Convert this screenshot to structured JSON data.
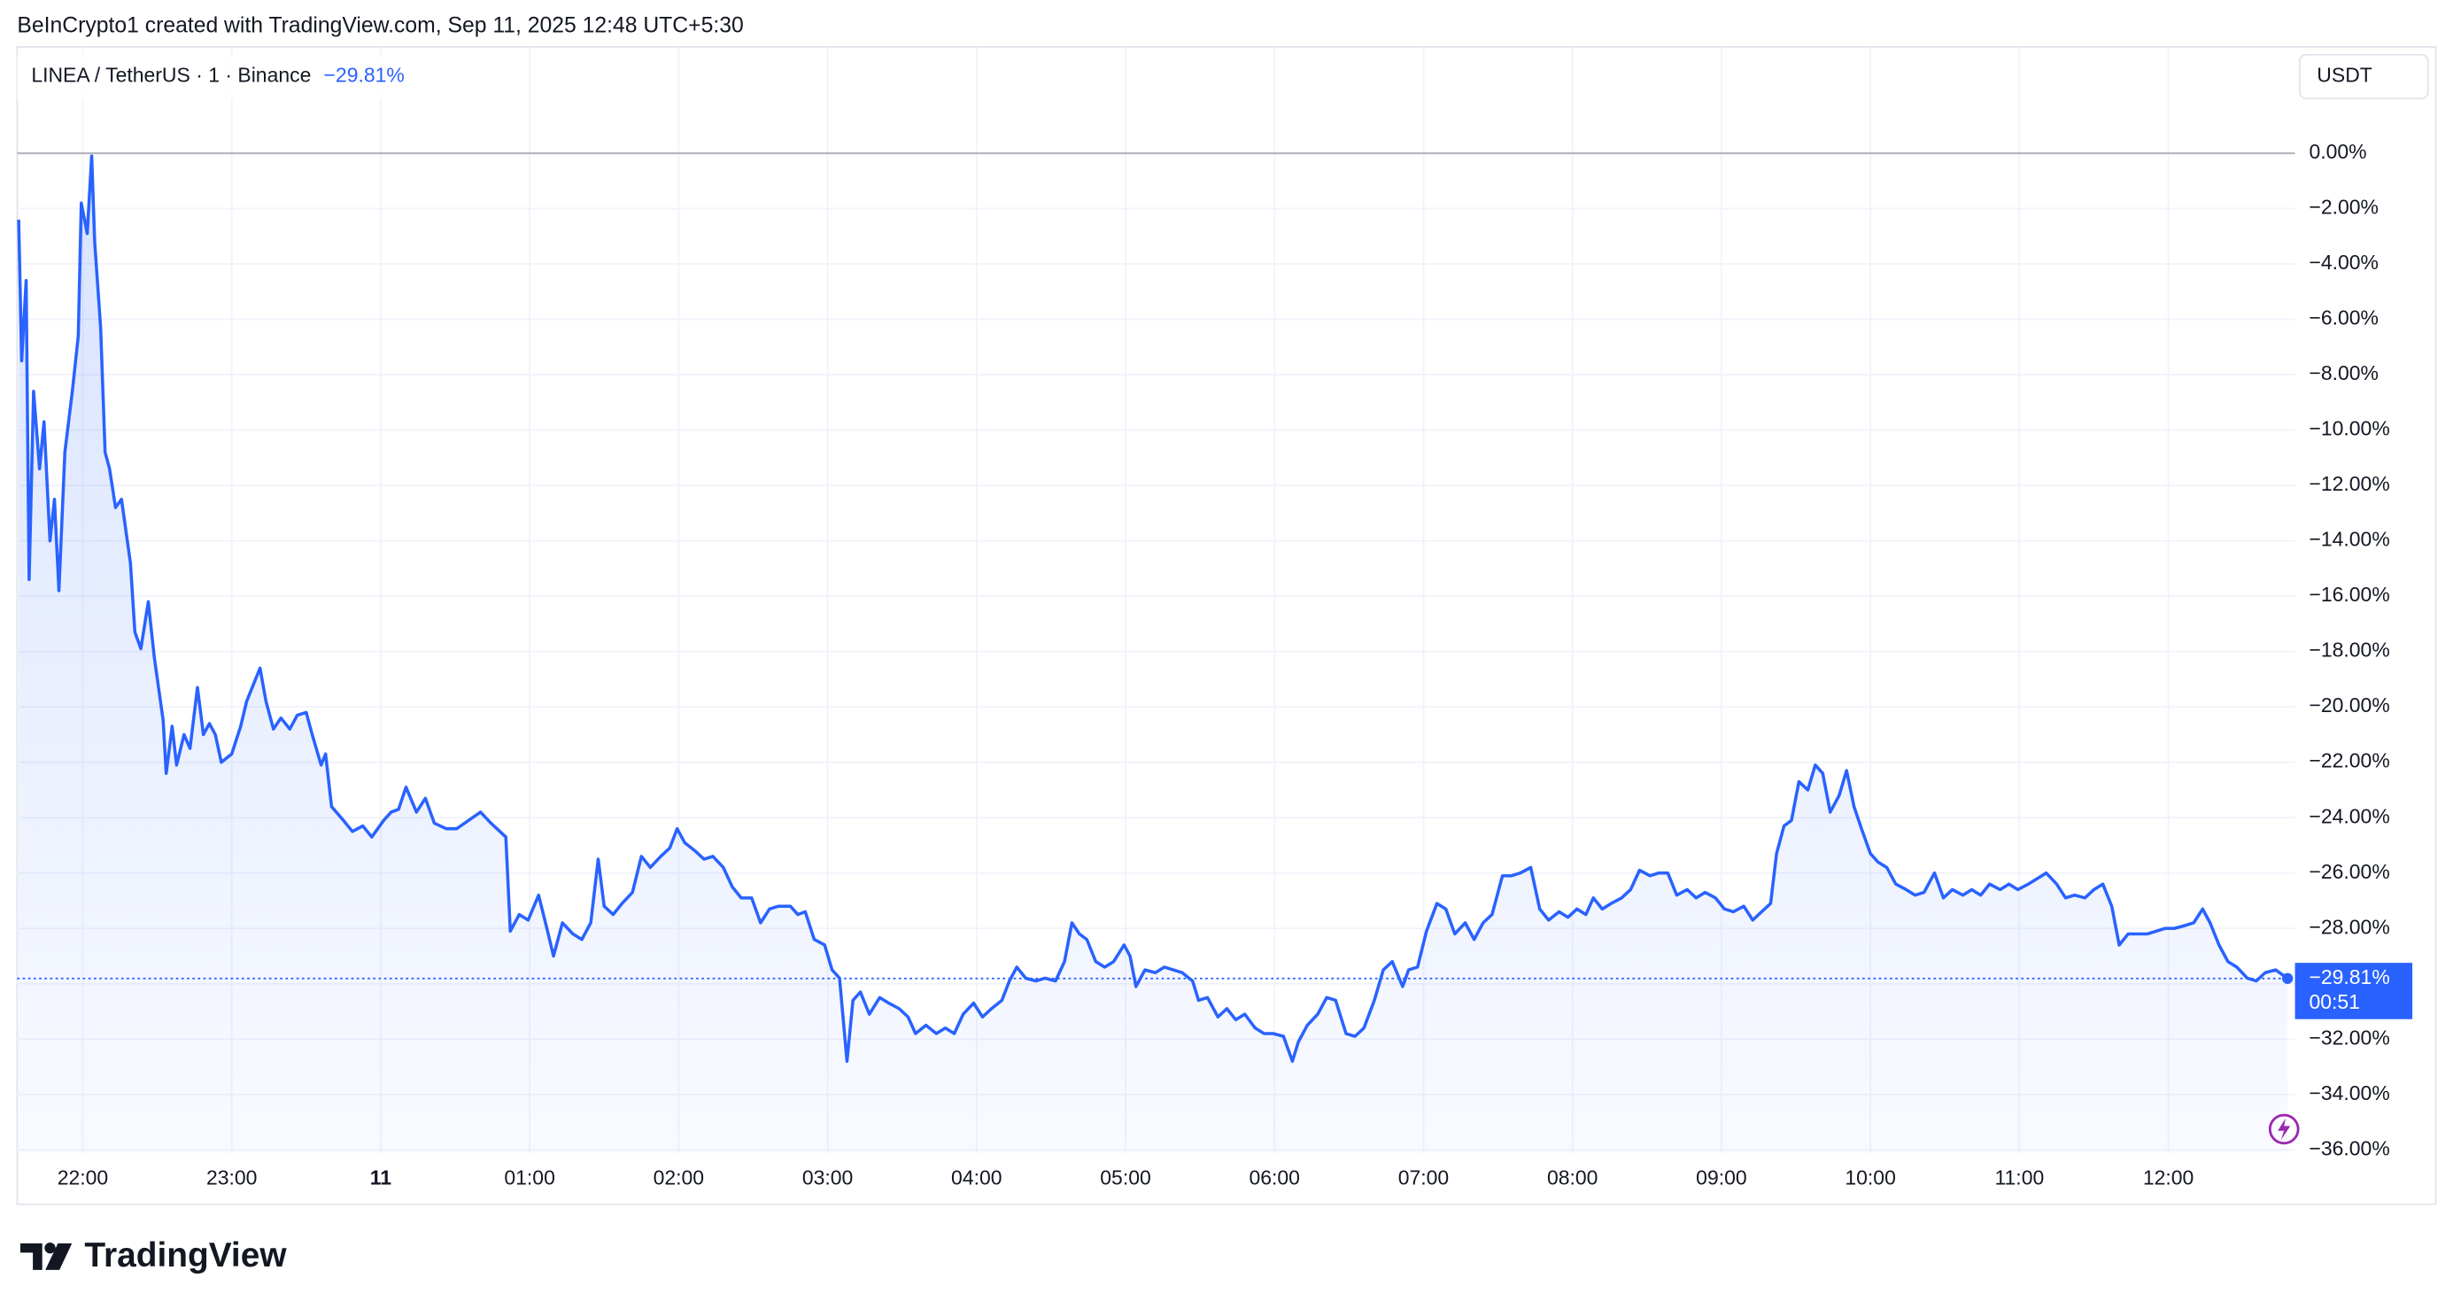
{
  "chart_data": {
    "type": "line",
    "credit": "BeInCrypto1 created with TradingView.com, Sep 11, 2025 12:48 UTC+5:30",
    "title": "LINEA / TetherUS · 1 · Binance",
    "change_label": "−29.81%",
    "currency": "USDT",
    "price_label": "−29.81%",
    "countdown": "00:51",
    "brand": "TradingView",
    "baseline": 0,
    "grid": true,
    "xlim": [
      21.56,
      36.85
    ],
    "ylim": [
      3.84,
      -36.1
    ],
    "xticks": [
      {
        "value": 22,
        "label": "22:00"
      },
      {
        "value": 23,
        "label": "23:00"
      },
      {
        "value": 24,
        "label": "11"
      },
      {
        "value": 25,
        "label": "01:00"
      },
      {
        "value": 26,
        "label": "02:00"
      },
      {
        "value": 27,
        "label": "03:00"
      },
      {
        "value": 28,
        "label": "04:00"
      },
      {
        "value": 29,
        "label": "05:00"
      },
      {
        "value": 30,
        "label": "06:00"
      },
      {
        "value": 31,
        "label": "07:00"
      },
      {
        "value": 32,
        "label": "08:00"
      },
      {
        "value": 33,
        "label": "09:00"
      },
      {
        "value": 34,
        "label": "10:00"
      },
      {
        "value": 35,
        "label": "11:00"
      },
      {
        "value": 36,
        "label": "12:00"
      }
    ],
    "yticks": [
      {
        "value": 0,
        "label": "0.00%"
      },
      {
        "value": -2,
        "label": "−2.00%"
      },
      {
        "value": -4,
        "label": "−4.00%"
      },
      {
        "value": -6,
        "label": "−6.00%"
      },
      {
        "value": -8,
        "label": "−8.00%"
      },
      {
        "value": -10,
        "label": "−10.00%"
      },
      {
        "value": -12,
        "label": "−12.00%"
      },
      {
        "value": -14,
        "label": "−14.00%"
      },
      {
        "value": -16,
        "label": "−16.00%"
      },
      {
        "value": -18,
        "label": "−18.00%"
      },
      {
        "value": -20,
        "label": "−20.00%"
      },
      {
        "value": -22,
        "label": "−22.00%"
      },
      {
        "value": -24,
        "label": "−24.00%"
      },
      {
        "value": -26,
        "label": "−26.00%"
      },
      {
        "value": -28,
        "label": "−28.00%"
      },
      {
        "value": -30,
        "label": "−30.00%"
      },
      {
        "value": -32,
        "label": "−32.00%"
      },
      {
        "value": -34,
        "label": "−34.00%"
      },
      {
        "value": -36,
        "label": "−36.00%"
      }
    ],
    "x": [
      21.57,
      21.59,
      21.62,
      21.64,
      21.67,
      21.71,
      21.74,
      21.78,
      21.81,
      21.84,
      21.88,
      21.93,
      21.97,
      21.99,
      22.03,
      22.06,
      22.08,
      22.12,
      22.15,
      22.18,
      22.22,
      22.26,
      22.32,
      22.35,
      22.39,
      22.44,
      22.48,
      22.54,
      22.56,
      22.6,
      22.63,
      22.68,
      22.72,
      22.77,
      22.81,
      22.85,
      22.89,
      22.93,
      23.0,
      23.06,
      23.1,
      23.16,
      23.19,
      23.23,
      23.28,
      23.33,
      23.39,
      23.44,
      23.5,
      23.54,
      23.6,
      23.63,
      23.67,
      23.75,
      23.81,
      23.88,
      23.94,
      24.02,
      24.07,
      24.12,
      24.17,
      24.24,
      24.3,
      24.36,
      24.44,
      24.51,
      24.59,
      24.67,
      24.74,
      24.8,
      24.84,
      24.87,
      24.93,
      24.99,
      25.06,
      25.12,
      25.16,
      25.22,
      25.29,
      25.35,
      25.41,
      25.46,
      25.5,
      25.56,
      25.62,
      25.69,
      25.75,
      25.81,
      25.88,
      25.94,
      25.99,
      26.04,
      26.11,
      26.17,
      26.23,
      26.3,
      26.36,
      26.42,
      26.49,
      26.55,
      26.61,
      26.67,
      26.75,
      26.8,
      26.85,
      26.91,
      26.98,
      27.03,
      27.08,
      27.13,
      27.17,
      27.22,
      27.28,
      27.35,
      27.41,
      27.48,
      27.54,
      27.59,
      27.66,
      27.73,
      27.79,
      27.85,
      27.91,
      27.98,
      28.04,
      28.1,
      28.17,
      28.22,
      28.27,
      28.33,
      28.4,
      28.46,
      28.53,
      28.59,
      28.64,
      28.69,
      28.74,
      28.8,
      28.86,
      28.92,
      28.99,
      29.03,
      29.07,
      29.13,
      29.2,
      29.26,
      29.32,
      29.38,
      29.45,
      29.49,
      29.55,
      29.62,
      29.68,
      29.74,
      29.8,
      29.87,
      29.93,
      29.99,
      30.06,
      30.12,
      30.16,
      30.22,
      30.29,
      30.35,
      30.41,
      30.48,
      30.54,
      30.6,
      30.67,
      30.73,
      30.79,
      30.86,
      30.9,
      30.96,
      31.02,
      31.09,
      31.15,
      31.21,
      31.28,
      31.34,
      31.4,
      31.46,
      31.53,
      31.59,
      31.65,
      31.72,
      31.78,
      31.84,
      31.91,
      31.97,
      32.03,
      32.09,
      32.14,
      32.2,
      32.26,
      32.33,
      32.39,
      32.45,
      32.52,
      32.58,
      32.64,
      32.7,
      32.77,
      32.83,
      32.89,
      32.96,
      33.02,
      33.08,
      33.15,
      33.21,
      33.27,
      33.33,
      33.37,
      33.42,
      33.47,
      33.52,
      33.58,
      33.63,
      33.68,
      33.73,
      33.79,
      33.84,
      33.89,
      33.94,
      34.0,
      34.05,
      34.11,
      34.17,
      34.24,
      34.3,
      34.36,
      34.43,
      34.49,
      34.55,
      34.62,
      34.68,
      34.74,
      34.8,
      34.87,
      34.93,
      34.99,
      35.06,
      35.12,
      35.18,
      35.25,
      35.31,
      35.37,
      35.44,
      35.5,
      35.56,
      35.62,
      35.67,
      35.73,
      35.79,
      35.86,
      35.92,
      35.98,
      36.04,
      36.11,
      36.17,
      36.23,
      36.28,
      36.34,
      36.4,
      36.46,
      36.53,
      36.59,
      36.65,
      36.72,
      36.8
    ],
    "series": [
      {
        "name": "LINEA / TetherUS",
        "color": "#2962ff",
        "values": [
          -2.4,
          -7.5,
          -4.6,
          -15.4,
          -8.6,
          -11.4,
          -9.7,
          -14,
          -12.5,
          -15.8,
          -10.8,
          -8.6,
          -6.6,
          -1.8,
          -2.9,
          -0.1,
          -3.2,
          -6.3,
          -10.8,
          -11.4,
          -12.8,
          -12.5,
          -14.8,
          -17.3,
          -17.9,
          -16.2,
          -18.2,
          -20.5,
          -22.4,
          -20.7,
          -22.1,
          -21,
          -21.5,
          -19.3,
          -21,
          -20.6,
          -21,
          -22,
          -21.7,
          -20.7,
          -19.8,
          -19,
          -18.6,
          -19.8,
          -20.8,
          -20.4,
          -20.8,
          -20.3,
          -20.2,
          -21,
          -22.1,
          -21.7,
          -23.6,
          -24.1,
          -24.5,
          -24.3,
          -24.7,
          -24.1,
          -23.8,
          -23.7,
          -22.9,
          -23.8,
          -23.3,
          -24.2,
          -24.4,
          -24.4,
          -24.1,
          -23.8,
          -24.2,
          -24.5,
          -24.7,
          -28.1,
          -27.5,
          -27.7,
          -26.8,
          -28.1,
          -29,
          -27.8,
          -28.2,
          -28.4,
          -27.8,
          -25.5,
          -27.2,
          -27.5,
          -27.1,
          -26.7,
          -25.4,
          -25.8,
          -25.4,
          -25.1,
          -24.4,
          -24.9,
          -25.2,
          -25.5,
          -25.4,
          -25.8,
          -26.5,
          -26.9,
          -26.9,
          -27.8,
          -27.3,
          -27.2,
          -27.2,
          -27.5,
          -27.4,
          -28.4,
          -28.6,
          -29.5,
          -29.8,
          -32.8,
          -30.6,
          -30.3,
          -31.1,
          -30.5,
          -30.7,
          -30.9,
          -31.2,
          -31.8,
          -31.5,
          -31.8,
          -31.6,
          -31.8,
          -31.1,
          -30.7,
          -31.2,
          -30.9,
          -30.6,
          -29.9,
          -29.4,
          -29.8,
          -29.9,
          -29.8,
          -29.9,
          -29.2,
          -27.8,
          -28.2,
          -28.4,
          -29.2,
          -29.4,
          -29.2,
          -28.6,
          -29,
          -30.1,
          -29.5,
          -29.6,
          -29.4,
          -29.5,
          -29.6,
          -29.9,
          -30.6,
          -30.5,
          -31.2,
          -30.9,
          -31.3,
          -31.1,
          -31.6,
          -31.8,
          -31.8,
          -31.9,
          -32.8,
          -32.1,
          -31.5,
          -31.1,
          -30.5,
          -30.6,
          -31.8,
          -31.9,
          -31.6,
          -30.6,
          -29.5,
          -29.2,
          -30.1,
          -29.5,
          -29.4,
          -28.1,
          -27.1,
          -27.3,
          -28.2,
          -27.8,
          -28.4,
          -27.8,
          -27.5,
          -26.1,
          -26.1,
          -26,
          -25.8,
          -27.3,
          -27.7,
          -27.4,
          -27.6,
          -27.3,
          -27.5,
          -26.9,
          -27.3,
          -27.1,
          -26.9,
          -26.6,
          -25.9,
          -26.1,
          -26,
          -26,
          -26.8,
          -26.6,
          -26.9,
          -26.7,
          -26.9,
          -27.3,
          -27.4,
          -27.2,
          -27.7,
          -27.4,
          -27.1,
          -25.3,
          -24.3,
          -24.1,
          -22.7,
          -23,
          -22.1,
          -22.4,
          -23.8,
          -23.2,
          -22.3,
          -23.6,
          -24.4,
          -25.3,
          -25.6,
          -25.8,
          -26.4,
          -26.6,
          -26.8,
          -26.7,
          -26,
          -26.9,
          -26.6,
          -26.8,
          -26.6,
          -26.8,
          -26.4,
          -26.6,
          -26.4,
          -26.6,
          -26.4,
          -26.2,
          -26,
          -26.4,
          -26.9,
          -26.8,
          -26.9,
          -26.6,
          -26.4,
          -27.2,
          -28.6,
          -28.2,
          -28.2,
          -28.2,
          -28.1,
          -28,
          -28,
          -27.9,
          -27.8,
          -27.3,
          -27.8,
          -28.6,
          -29.2,
          -29.4,
          -29.8,
          -29.9,
          -29.6,
          -29.5,
          -29.81
        ]
      }
    ]
  }
}
